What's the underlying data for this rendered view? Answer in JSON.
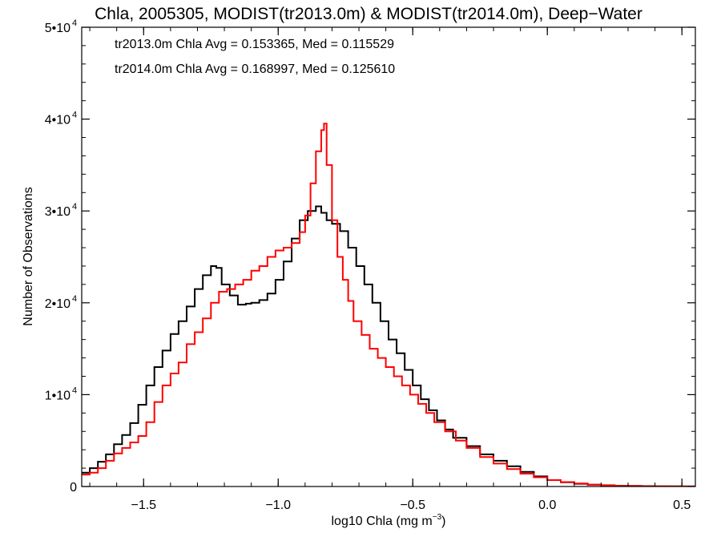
{
  "chart_data": {
    "type": "line",
    "step": true,
    "title": "Chla, 2005305, MODIST(tr2013.0m) & MODIST(tr2014.0m), Deep−Water",
    "xlabel": "log10 Chla (mg m",
    "xlabel_sup": "−3",
    "xlabel_tail": ")",
    "ylabel": "Number of Observations",
    "xlim": [
      -1.73,
      0.55
    ],
    "ylim": [
      0,
      50000
    ],
    "x_ticks": [
      {
        "value": -1.5,
        "label": "−1.5"
      },
      {
        "value": -1.0,
        "label": "−1.0"
      },
      {
        "value": -0.5,
        "label": "−0.5"
      },
      {
        "value": 0.0,
        "label": "0.0"
      },
      {
        "value": 0.5,
        "label": "0.5"
      }
    ],
    "y_ticks": [
      {
        "value": 0,
        "label": "0",
        "sup": ""
      },
      {
        "value": 10000,
        "label": "1•10",
        "sup": "4"
      },
      {
        "value": 20000,
        "label": "2•10",
        "sup": "4"
      },
      {
        "value": 30000,
        "label": "3•10",
        "sup": "4"
      },
      {
        "value": 40000,
        "label": "4•10",
        "sup": "4"
      },
      {
        "value": 50000,
        "label": "5•10",
        "sup": "4"
      }
    ],
    "legend": [
      {
        "text": "tr2013.0m Chla Avg = 0.153365, Med = 0.115529",
        "color": "#000000"
      },
      {
        "text": "tr2014.0m Chla Avg = 0.168997, Med = 0.125610",
        "color": "#ff0000"
      }
    ],
    "legend_position": "top-left",
    "series": [
      {
        "color": "#000000",
        "x": [
          -1.73,
          -1.7,
          -1.67,
          -1.64,
          -1.61,
          -1.58,
          -1.55,
          -1.52,
          -1.49,
          -1.46,
          -1.43,
          -1.4,
          -1.37,
          -1.34,
          -1.31,
          -1.28,
          -1.25,
          -1.23,
          -1.21,
          -1.18,
          -1.15,
          -1.12,
          -1.1,
          -1.07,
          -1.04,
          -1.01,
          -0.98,
          -0.95,
          -0.92,
          -0.89,
          -0.86,
          -0.84,
          -0.82,
          -0.8,
          -0.77,
          -0.74,
          -0.71,
          -0.68,
          -0.65,
          -0.62,
          -0.59,
          -0.56,
          -0.53,
          -0.5,
          -0.47,
          -0.44,
          -0.41,
          -0.38,
          -0.35,
          -0.3,
          -0.25,
          -0.2,
          -0.15,
          -0.1,
          -0.05,
          0.0,
          0.05,
          0.1,
          0.15,
          0.2,
          0.25,
          0.3,
          0.35,
          0.4,
          0.45,
          0.5,
          0.55
        ],
        "y": [
          1500,
          2000,
          2700,
          3500,
          4600,
          5600,
          6900,
          8900,
          11000,
          13000,
          14800,
          16600,
          18000,
          19600,
          21500,
          23000,
          24000,
          23800,
          22000,
          20800,
          19800,
          19900,
          20000,
          20300,
          21000,
          22500,
          24500,
          27000,
          29000,
          30000,
          30500,
          29800,
          29000,
          28600,
          27800,
          26000,
          24000,
          22000,
          20000,
          18000,
          16000,
          14500,
          12700,
          11000,
          9500,
          8300,
          7200,
          6200,
          5300,
          4400,
          3500,
          2800,
          2200,
          1600,
          1100,
          700,
          450,
          300,
          200,
          140,
          90,
          60,
          40,
          25,
          15,
          8,
          3
        ]
      },
      {
        "color": "#ff0000",
        "x": [
          -1.73,
          -1.7,
          -1.67,
          -1.64,
          -1.61,
          -1.58,
          -1.55,
          -1.52,
          -1.49,
          -1.46,
          -1.43,
          -1.4,
          -1.37,
          -1.34,
          -1.31,
          -1.28,
          -1.25,
          -1.22,
          -1.19,
          -1.16,
          -1.13,
          -1.1,
          -1.07,
          -1.04,
          -1.01,
          -0.98,
          -0.95,
          -0.92,
          -0.9,
          -0.88,
          -0.86,
          -0.84,
          -0.83,
          -0.82,
          -0.8,
          -0.78,
          -0.76,
          -0.74,
          -0.72,
          -0.69,
          -0.66,
          -0.63,
          -0.6,
          -0.57,
          -0.54,
          -0.51,
          -0.48,
          -0.45,
          -0.42,
          -0.38,
          -0.34,
          -0.3,
          -0.25,
          -0.2,
          -0.15,
          -0.1,
          -0.05,
          0.0,
          0.05,
          0.1,
          0.15,
          0.2,
          0.25,
          0.3,
          0.35,
          0.4,
          0.45,
          0.5,
          0.55
        ],
        "y": [
          1300,
          1500,
          2000,
          2800,
          3600,
          4200,
          4800,
          5500,
          7000,
          9200,
          11000,
          12300,
          13500,
          15500,
          16800,
          18300,
          20000,
          21200,
          21500,
          22000,
          22500,
          23500,
          24000,
          25000,
          25700,
          26000,
          26500,
          27700,
          29500,
          33000,
          36500,
          38800,
          39500,
          35000,
          29000,
          25000,
          22500,
          20200,
          18000,
          16500,
          15000,
          14000,
          13000,
          12000,
          11000,
          10000,
          9000,
          8000,
          7000,
          6000,
          5000,
          4200,
          3200,
          2500,
          1900,
          1400,
          1000,
          700,
          480,
          320,
          200,
          130,
          80,
          50,
          30,
          18,
          10,
          5,
          2
        ]
      }
    ]
  }
}
